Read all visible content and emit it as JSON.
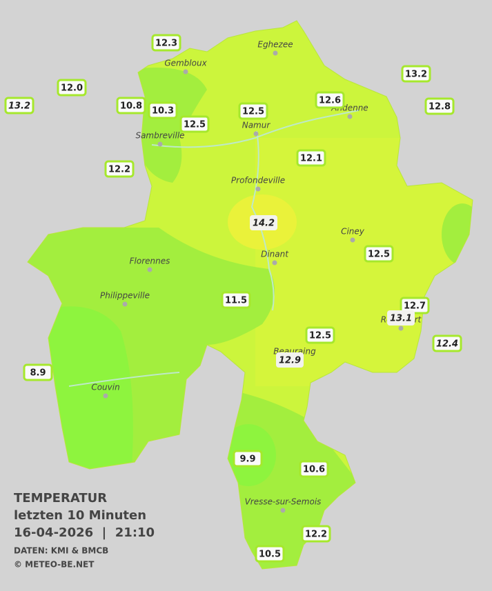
{
  "map": {
    "stations": [
      "12.3",
      "12.0",
      "13.2",
      "10.8",
      "10.3",
      "12.5",
      "12.5",
      "12.6",
      "13.2",
      "12.8",
      "12.1",
      "12.2",
      "14.2",
      "12.5",
      "11.5",
      "12.7",
      "13.1",
      "12.4",
      "12.5",
      "12.9",
      "8.9",
      "9.9",
      "10.6",
      "12.2",
      "10.5"
    ],
    "cities": [
      "Eghezee",
      "Gembloux",
      "Andenne",
      "Namur",
      "Sambreville",
      "Profondeville",
      "Ciney",
      "Dinant",
      "Florennes",
      "Philippeville",
      "Couvin",
      "Vresse-sur-Semois",
      "Rochefort",
      "Beauraing"
    ]
  },
  "legend": {
    "title": "TEMPERATUR",
    "subtitle": "letzten 10 Minuten",
    "timestamp": "16-04-2026  |  21:10",
    "source": "DATEN: KMI & BMCB",
    "copyright": "© METEO-BE.NET"
  }
}
